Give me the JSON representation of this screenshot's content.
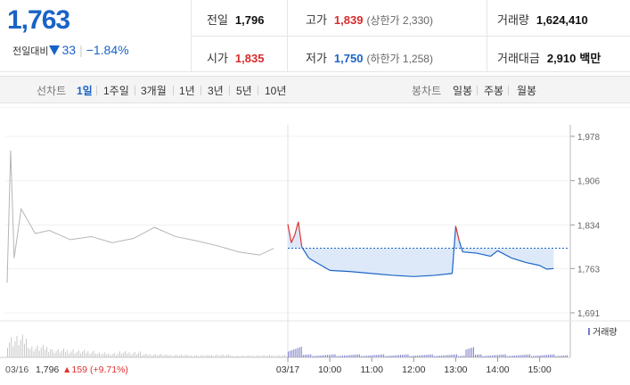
{
  "quote": {
    "price": "1,763",
    "change_label": "전일대비",
    "change": "33",
    "change_rate": "−1.84%"
  },
  "stats": {
    "prev_close": {
      "label": "전일",
      "value": "1,796"
    },
    "high": {
      "label": "고가",
      "value": "1,839",
      "sub": "(상한가 2,330)"
    },
    "volume": {
      "label": "거래량",
      "value": "1,624,410"
    },
    "open": {
      "label": "시가",
      "value": "1,835"
    },
    "low": {
      "label": "저가",
      "value": "1,750",
      "sub": "(하한가 1,258)"
    },
    "amount": {
      "label": "거래대금",
      "value": "2,910",
      "unit": "백만"
    }
  },
  "line_tabs": {
    "label": "선차트",
    "items": [
      "1일",
      "1주일",
      "3개월",
      "1년",
      "3년",
      "5년",
      "10년"
    ],
    "active": "1일"
  },
  "candle_tabs": {
    "label": "봉차트",
    "items": [
      "일봉",
      "주봉",
      "월봉"
    ]
  },
  "chart": {
    "legend": "거래량",
    "prev_day_note": {
      "date": "03/16",
      "close": "1,796",
      "change": "▲159",
      "rate": "(+9.71%)"
    },
    "colors": {
      "up": "#e03030",
      "down": "#1a63c6",
      "prev": "#b5b5b5",
      "fill": "#dde9f8",
      "ref": "#1a63c6"
    }
  },
  "chart_data": {
    "type": "line",
    "title": "",
    "ylabel": "",
    "xlabel": "",
    "ylim": [
      1691,
      1978
    ],
    "yticks": [
      "1,978",
      "1,906",
      "1,834",
      "1,763",
      "1,691"
    ],
    "ytick_values": [
      1978,
      1906,
      1834,
      1763,
      1691
    ],
    "xticks": [
      "03/17",
      "10:00",
      "11:00",
      "12:00",
      "13:00",
      "14:00",
      "15:00"
    ],
    "reference_price": 1796,
    "series": [
      {
        "x": [
          "03/16 09:00",
          "03/16 09:05",
          "03/16 09:10",
          "03/16 09:20",
          "03/16 09:40",
          "03/16 10:00",
          "03/16 10:30",
          "03/16 11:00",
          "03/16 11:30",
          "03/16 12:00",
          "03/16 12:30",
          "03/16 13:00",
          "03/16 13:30",
          "03/16 14:00",
          "03/16 14:30",
          "03/16 15:00",
          "03/16 15:20"
        ],
        "values": [
          1740,
          1955,
          1780,
          1860,
          1820,
          1825,
          1810,
          1815,
          1805,
          1812,
          1830,
          1815,
          1808,
          1800,
          1790,
          1785,
          1796
        ]
      },
      {
        "x": [
          "09:00",
          "09:05",
          "09:10",
          "09:15",
          "09:20",
          "09:30",
          "09:45",
          "10:00",
          "10:30",
          "11:00",
          "11:30",
          "12:00",
          "12:30",
          "12:55",
          "13:00",
          "13:05",
          "13:10",
          "13:30",
          "13:50",
          "14:00",
          "14:20",
          "14:40",
          "15:00",
          "15:10",
          "15:20"
        ],
        "values": [
          1835,
          1805,
          1818,
          1839,
          1798,
          1780,
          1770,
          1760,
          1758,
          1755,
          1752,
          1750,
          1752,
          1755,
          1832,
          1808,
          1790,
          1788,
          1783,
          1792,
          1780,
          1773,
          1768,
          1762,
          1763
        ]
      }
    ]
  }
}
